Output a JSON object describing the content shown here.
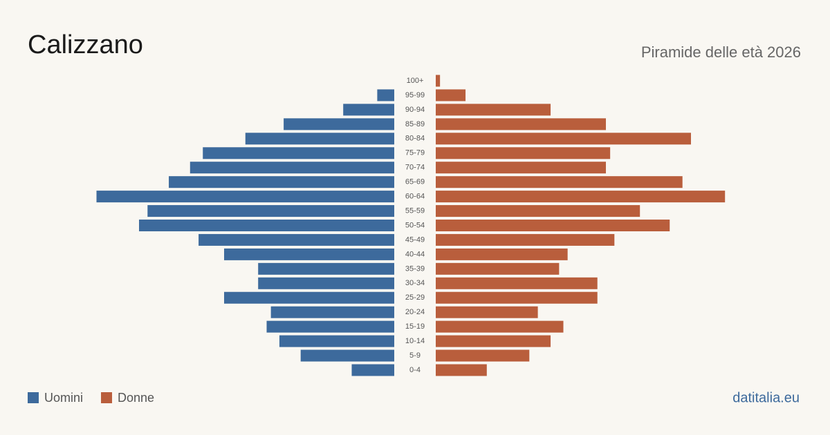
{
  "chart_data": {
    "type": "pyramid",
    "title": "Calizzano",
    "subtitle": "Piramide delle età 2026",
    "brand": "datitalia.eu",
    "categories": [
      "100+",
      "95-99",
      "90-94",
      "85-89",
      "80-84",
      "75-79",
      "70-74",
      "65-69",
      "60-64",
      "55-59",
      "50-54",
      "45-49",
      "40-44",
      "35-39",
      "30-34",
      "25-29",
      "20-24",
      "15-19",
      "10-14",
      "5-9",
      "0-4"
    ],
    "series": [
      {
        "name": "Uomini",
        "color": "#3d6a9c",
        "values": [
          0,
          4,
          12,
          26,
          35,
          45,
          48,
          53,
          70,
          58,
          60,
          46,
          40,
          32,
          32,
          40,
          29,
          30,
          27,
          22,
          10
        ]
      },
      {
        "name": "Donne",
        "color": "#b95e3c",
        "values": [
          1,
          7,
          27,
          40,
          60,
          41,
          40,
          58,
          68,
          48,
          55,
          42,
          31,
          29,
          38,
          38,
          24,
          30,
          27,
          22,
          12
        ]
      }
    ]
  }
}
